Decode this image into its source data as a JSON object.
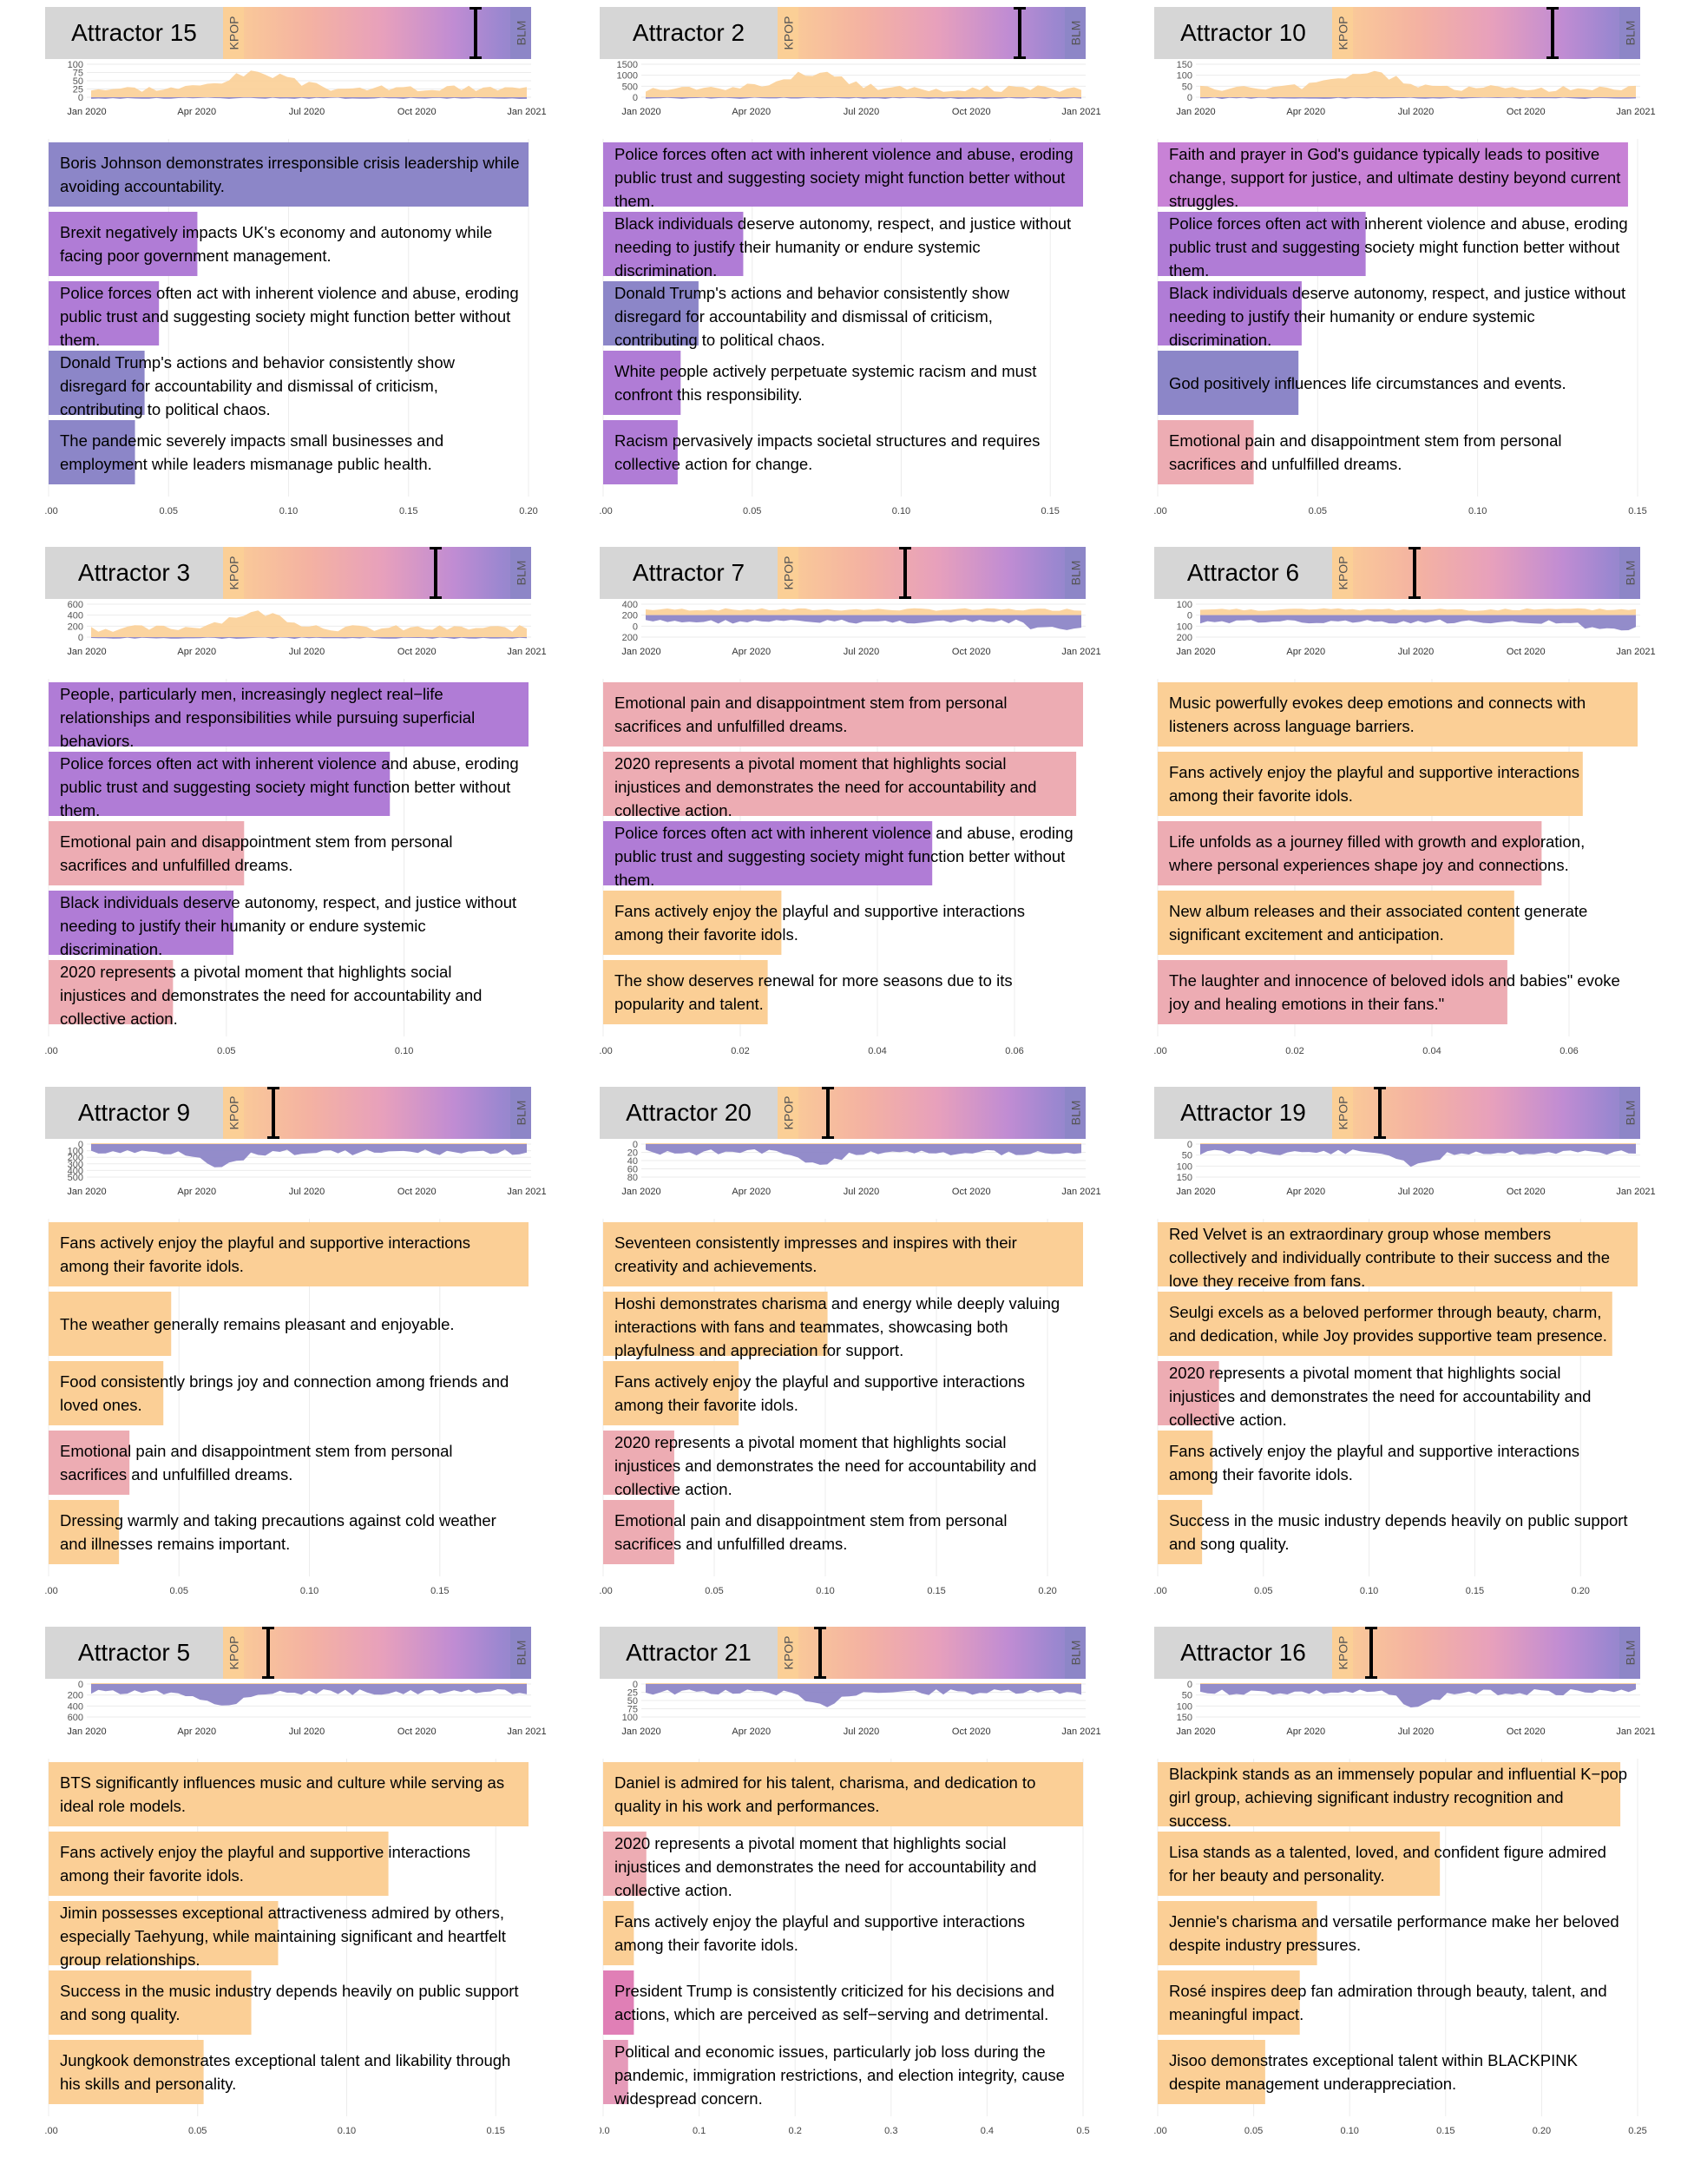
{
  "colors": {
    "kpop": "#fbcf96",
    "blm": "#8d86c7",
    "orange": "#fbcf96",
    "pink": "#edacb3",
    "purple": "#b07cd6",
    "slate": "#8c86c8",
    "header_bg": "#d6d6d6"
  },
  "header": {
    "left_label": "KPOP",
    "right_label": "BLM"
  },
  "timeline": {
    "labels": [
      "Jan 2020",
      "Apr 2020",
      "Jul 2020",
      "Oct 2020",
      "Jan 2021"
    ]
  },
  "chart_data": [
    {
      "type": "bar",
      "title": "Attractor 15",
      "position": 0.87,
      "ts_ticks": [
        "100",
        "75",
        "50",
        "25",
        "0"
      ],
      "ts_mode": "above",
      "xticks": [
        0,
        0.05,
        0.1,
        0.15,
        0.2
      ],
      "tick_labels": [
        "0.00",
        "0.05",
        "0.10",
        "0.15",
        "0.20"
      ],
      "xmax": 0.2,
      "categories": [
        "Boris Johnson demonstrates irresponsible crisis leadership while avoiding accountability.",
        "Brexit negatively impacts UK's economy and autonomy while facing poor government management.",
        "Police forces often act with inherent violence and abuse, eroding public trust and suggesting society might function better without them.",
        "Donald Trump's actions and behavior consistently show disregard for accountability and dismissal of criticism, contributing to political chaos.",
        "The pandemic severely impacts small businesses and employment while leaders mismanage public health."
      ],
      "values": [
        0.2,
        0.062,
        0.046,
        0.04,
        0.036
      ],
      "colors": [
        "slate",
        "purple",
        "purple",
        "slate",
        "slate"
      ]
    },
    {
      "type": "bar",
      "title": "Attractor 2",
      "position": 0.83,
      "ts_ticks": [
        "1500",
        "1000",
        "500",
        "0"
      ],
      "ts_mode": "above",
      "xticks": [
        0,
        0.05,
        0.1,
        0.15
      ],
      "tick_labels": [
        "0.00",
        "0.05",
        "0.10",
        "0.15"
      ],
      "xmax": 0.161,
      "categories": [
        "Police forces often act with inherent violence and abuse, eroding public trust and suggesting society might function better without them.",
        "Black individuals deserve autonomy, respect, and justice without needing to justify their humanity or endure systemic discrimination.",
        "Donald Trump's actions and behavior consistently show disregard for accountability and dismissal of criticism, contributing to political chaos.",
        "White people actively perpetuate systemic racism and must confront this responsibility.",
        "Racism pervasively impacts societal structures and requires collective action for change."
      ],
      "values": [
        0.161,
        0.047,
        0.032,
        0.026,
        0.025
      ],
      "colors": [
        "purple",
        "purple",
        "slate",
        "purple",
        "purple"
      ]
    },
    {
      "type": "bar",
      "title": "Attractor 10",
      "position": 0.75,
      "ts_ticks": [
        "150",
        "100",
        "50",
        "0"
      ],
      "ts_mode": "above",
      "xticks": [
        0,
        0.05,
        0.1,
        0.15
      ],
      "tick_labels": [
        "0.00",
        "0.05",
        "0.10",
        "0.15"
      ],
      "xmax": 0.15,
      "categories": [
        "Faith and prayer in God's guidance typically leads to positive change, support for justice, and ultimate destiny beyond current struggles.",
        "Police forces often act with inherent violence and abuse, eroding public trust and suggesting society might function better without them.",
        "Black individuals deserve autonomy, respect, and justice without needing to justify their humanity or endure systemic discrimination.",
        "God positively influences life circumstances and events.",
        "Emotional pain and disappointment stem from personal sacrifices and unfulfilled dreams."
      ],
      "values": [
        0.147,
        0.065,
        0.045,
        0.044,
        0.03
      ],
      "colors": [
        "#c882d6",
        "purple",
        "purple",
        "slate",
        "pink"
      ]
    },
    {
      "type": "bar",
      "title": "Attractor 3",
      "position": 0.72,
      "ts_ticks": [
        "600",
        "400",
        "200",
        "0"
      ],
      "ts_mode": "above",
      "xticks": [
        0,
        0.05,
        0.1
      ],
      "tick_labels": [
        "0.00",
        "0.05",
        "0.10"
      ],
      "xmax": 0.135,
      "categories": [
        "People, particularly men, increasingly neglect real−life relationships and responsibilities while pursuing superficial behaviors.",
        "Police forces often act with inherent violence and abuse, eroding public trust and suggesting society might function better without them.",
        "Emotional pain and disappointment stem from personal sacrifices and unfulfilled dreams.",
        "Black individuals deserve autonomy, respect, and justice without needing to justify their humanity or endure systemic discrimination.",
        "2020 represents a pivotal moment that highlights social injustices and demonstrates the need for accountability and collective action."
      ],
      "values": [
        0.135,
        0.096,
        0.055,
        0.052,
        0.035
      ],
      "colors": [
        "purple",
        "purple",
        "pink",
        "purple",
        "pink"
      ]
    },
    {
      "type": "bar",
      "title": "Attractor 7",
      "position": 0.4,
      "ts_ticks": [
        "400",
        "200",
        "0",
        "200"
      ],
      "ts_mode": "both",
      "xticks": [
        0,
        0.02,
        0.04,
        0.06
      ],
      "tick_labels": [
        "0.00",
        "0.02",
        "0.04",
        "0.06"
      ],
      "xmax": 0.07,
      "categories": [
        "Emotional pain and disappointment stem from personal sacrifices and unfulfilled dreams.",
        "2020 represents a pivotal moment that highlights social injustices and demonstrates the need for accountability and collective action.",
        "Police forces often act with inherent violence and abuse, eroding public trust and suggesting society might function better without them.",
        "Fans actively enjoy the playful and supportive interactions among their favorite idols.",
        "The show deserves renewal for more seasons due to its popularity and talent."
      ],
      "values": [
        0.07,
        0.069,
        0.048,
        0.026,
        0.024
      ],
      "colors": [
        "pink",
        "pink",
        "purple",
        "orange",
        "orange"
      ]
    },
    {
      "type": "bar",
      "title": "Attractor 6",
      "position": 0.23,
      "ts_ticks": [
        "100",
        "0",
        "100",
        "200"
      ],
      "ts_mode": "both",
      "xticks": [
        0,
        0.02,
        0.04,
        0.06
      ],
      "tick_labels": [
        "0.00",
        "0.02",
        "0.04",
        "0.06"
      ],
      "xmax": 0.07,
      "categories": [
        "Music powerfully evokes deep emotions and connects with listeners across language barriers.",
        "Fans actively enjoy the playful and supportive interactions among their favorite idols.",
        "Life unfolds as a journey filled with growth and exploration, where personal experiences shape joy and connections.",
        "New album releases and their associated content generate significant excitement and anticipation.",
        "The laughter and innocence of beloved idols and babies\" evoke joy and healing emotions in their fans.\""
      ],
      "values": [
        0.07,
        0.062,
        0.056,
        0.052,
        0.051
      ],
      "colors": [
        "orange",
        "orange",
        "pink",
        "orange",
        "pink"
      ]
    },
    {
      "type": "bar",
      "title": "Attractor 9",
      "position": 0.11,
      "ts_ticks": [
        "0",
        "100",
        "200",
        "300",
        "400",
        "500"
      ],
      "ts_mode": "below",
      "xticks": [
        0,
        0.05,
        0.1,
        0.15
      ],
      "tick_labels": [
        "0.00",
        "0.05",
        "0.10",
        "0.15"
      ],
      "xmax": 0.184,
      "categories": [
        "Fans actively enjoy the playful and supportive interactions among their favorite idols.",
        "The weather generally remains pleasant and enjoyable.",
        "Food consistently brings joy and connection among friends and loved ones.",
        "Emotional pain and disappointment stem from personal sacrifices and unfulfilled dreams.",
        "Dressing warmly and taking precautions against cold weather and illnesses remains important."
      ],
      "values": [
        0.184,
        0.047,
        0.044,
        0.031,
        0.027
      ],
      "colors": [
        "orange",
        "orange",
        "orange",
        "pink",
        "orange"
      ]
    },
    {
      "type": "bar",
      "title": "Attractor 20",
      "position": 0.11,
      "ts_ticks": [
        "0",
        "20",
        "40",
        "60",
        "80"
      ],
      "ts_mode": "below",
      "xticks": [
        0,
        0.05,
        0.1,
        0.15,
        0.2
      ],
      "tick_labels": [
        "0.00",
        "0.05",
        "0.10",
        "0.15",
        "0.20"
      ],
      "xmax": 0.216,
      "categories": [
        "Seventeen consistently impresses and inspires with their creativity and achievements.",
        "Hoshi demonstrates charisma and energy while deeply valuing interactions with fans and teammates, showcasing both playfulness and appreciation for support.",
        "Fans actively enjoy the playful and supportive interactions among their favorite idols.",
        "2020 represents a pivotal moment that highlights social injustices and demonstrates the need for accountability and collective action.",
        "Emotional pain and disappointment stem from personal sacrifices and unfulfilled dreams."
      ],
      "values": [
        0.216,
        0.101,
        0.061,
        0.032,
        0.032
      ],
      "colors": [
        "orange",
        "orange",
        "orange",
        "pink",
        "pink"
      ]
    },
    {
      "type": "bar",
      "title": "Attractor 19",
      "position": 0.1,
      "ts_ticks": [
        "0",
        "50",
        "100",
        "150"
      ],
      "ts_mode": "below",
      "xticks": [
        0,
        0.05,
        0.1,
        0.15,
        0.2
      ],
      "tick_labels": [
        "0.00",
        "0.05",
        "0.10",
        "0.15",
        "0.20"
      ],
      "xmax": 0.227,
      "categories": [
        "Red Velvet is an extraordinary group whose members collectively and individually contribute to their success and the love they receive from fans.",
        "Seulgi excels as a beloved performer through beauty, charm, and dedication, while Joy provides supportive team presence.",
        "2020 represents a pivotal moment that highlights social injustices and demonstrates the need for accountability and collective action.",
        "Fans actively enjoy the playful and supportive interactions among their favorite idols.",
        "Success in the music industry depends heavily on public support and song quality."
      ],
      "values": [
        0.227,
        0.215,
        0.029,
        0.026,
        0.021
      ],
      "colors": [
        "orange",
        "orange",
        "pink",
        "orange",
        "orange"
      ]
    },
    {
      "type": "bar",
      "title": "Attractor 5",
      "position": 0.09,
      "ts_ticks": [
        "0",
        "200",
        "400",
        "600"
      ],
      "ts_mode": "below",
      "xticks": [
        0,
        0.05,
        0.1,
        0.15
      ],
      "tick_labels": [
        "0.00",
        "0.05",
        "0.10",
        "0.15"
      ],
      "xmax": 0.161,
      "categories": [
        "BTS significantly influences music and culture while serving as ideal role models.",
        "Fans actively enjoy the playful and supportive interactions among their favorite idols.",
        "Jimin possesses exceptional attractiveness admired by others, especially Taehyung, while maintaining significant and heartfelt group relationships.",
        "Success in the music industry depends heavily on public support and song quality.",
        "Jungkook demonstrates exceptional talent and likability through his skills and personality."
      ],
      "values": [
        0.161,
        0.114,
        0.077,
        0.068,
        0.052
      ],
      "colors": [
        "orange",
        "orange",
        "orange",
        "orange",
        "orange"
      ]
    },
    {
      "type": "bar",
      "title": "Attractor 21",
      "position": 0.08,
      "ts_ticks": [
        "0",
        "25",
        "50",
        "75",
        "100"
      ],
      "ts_mode": "below",
      "xticks": [
        0,
        0.1,
        0.2,
        0.3,
        0.4,
        0.5
      ],
      "tick_labels": [
        "0.0",
        "0.1",
        "0.2",
        "0.3",
        "0.4",
        "0.5"
      ],
      "xmax": 0.5,
      "categories": [
        "Daniel is admired for his talent, charisma, and dedication to quality in his work and performances.",
        "2020 represents a pivotal moment that highlights social injustices and demonstrates the need for accountability and collective action.",
        "Fans actively enjoy the playful and supportive interactions among their favorite idols.",
        "President Trump is consistently criticized for his decisions and actions, which are perceived as self−serving and detrimental.",
        "Political and economic issues, particularly job loss during the pandemic, immigration restrictions, and election integrity, cause widespread concern."
      ],
      "values": [
        0.5,
        0.045,
        0.032,
        0.032,
        0.026
      ],
      "colors": [
        "orange",
        "pink",
        "orange",
        "#e07fb6",
        "#e59ab9"
      ]
    },
    {
      "type": "bar",
      "title": "Attractor 16",
      "position": 0.07,
      "ts_ticks": [
        "0",
        "50",
        "100",
        "150"
      ],
      "ts_mode": "below",
      "xticks": [
        0,
        0.05,
        0.1,
        0.15,
        0.2,
        0.25
      ],
      "tick_labels": [
        "0.00",
        "0.05",
        "0.10",
        "0.15",
        "0.20",
        "0.25"
      ],
      "xmax": 0.25,
      "categories": [
        "Blackpink stands as an immensely popular and influential K−pop girl group, achieving significant industry recognition and success.",
        "Lisa stands as a talented, loved, and confident figure admired for her beauty and personality.",
        "Jennie's charisma and versatile performance make her beloved despite industry pressures.",
        "Rosé inspires deep fan admiration through beauty, talent, and meaningful impact.",
        "Jisoo demonstrates exceptional talent within BLACKPINK despite management underappreciation."
      ],
      "values": [
        0.241,
        0.147,
        0.083,
        0.074,
        0.056
      ],
      "colors": [
        "orange",
        "orange",
        "orange",
        "orange",
        "orange"
      ]
    }
  ]
}
